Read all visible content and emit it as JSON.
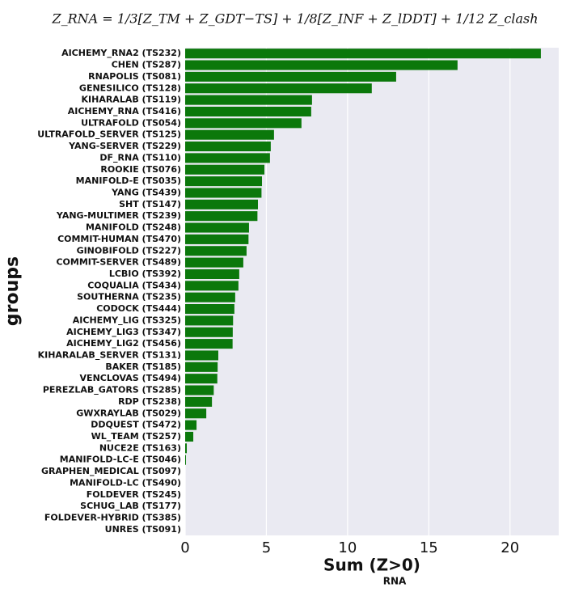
{
  "chart_data": {
    "type": "bar",
    "orientation": "horizontal",
    "title": "Z_RNA = 1/3[Z_TM + Z_GDT−TS] + 1/8[Z_INF + Z_lDDT] + 1/12 Z_clash",
    "xlabel": "Sum (Z>0)",
    "xlabel_sub": "RNA",
    "ylabel": "groups",
    "categories": [
      "AICHEMY_RNA2 (TS232)",
      "CHEN (TS287)",
      "RNAPOLIS (TS081)",
      "GENESILICO (TS128)",
      "KIHARALAB (TS119)",
      "AICHEMY_RNA (TS416)",
      "ULTRAFOLD (TS054)",
      "ULTRAFOLD_SERVER (TS125)",
      "YANG-SERVER (TS229)",
      "DF_RNA (TS110)",
      "ROOKIE (TS076)",
      "MANIFOLD-E (TS035)",
      "YANG (TS439)",
      "SHT (TS147)",
      "YANG-MULTIMER (TS239)",
      "MANIFOLD (TS248)",
      "COMMIT-HUMAN (TS470)",
      "GINOBIFOLD (TS227)",
      "COMMIT-SERVER (TS489)",
      "LCBIO (TS392)",
      "COQUALIA (TS434)",
      "SOUTHERNA (TS235)",
      "CODOCK (TS444)",
      "AICHEMY_LIG (TS325)",
      "AICHEMY_LIG3 (TS347)",
      "AICHEMY_LIG2 (TS456)",
      "KIHARALAB_SERVER (TS131)",
      "BAKER (TS185)",
      "VENCLOVAS (TS494)",
      "PEREZLAB_GATORS (TS285)",
      "RDP (TS238)",
      "GWXRAYLAB (TS029)",
      "DDQUEST (TS472)",
      "WL_TEAM (TS257)",
      "NUCE2E (TS163)",
      "MANIFOLD-LC-E (TS046)",
      "GRAPHEN_MEDICAL (TS097)",
      "MANIFOLD-LC (TS490)",
      "FOLDEVER (TS245)",
      "SCHUG_LAB (TS177)",
      "FOLDEVER-HYBRID (TS385)",
      "UNRES (TS091)"
    ],
    "values": [
      21.9,
      16.77,
      12.99,
      11.49,
      7.81,
      7.76,
      7.16,
      5.47,
      5.27,
      5.22,
      4.88,
      4.73,
      4.7,
      4.48,
      4.45,
      3.93,
      3.9,
      3.78,
      3.58,
      3.33,
      3.28,
      3.08,
      3.03,
      2.95,
      2.93,
      2.92,
      2.04,
      2.0,
      1.98,
      1.76,
      1.65,
      1.3,
      0.7,
      0.5,
      0.1,
      0.05,
      0,
      0,
      0,
      0,
      0,
      0
    ],
    "color": "#0b780b",
    "xlim": [
      0,
      23
    ],
    "xticks": [
      0,
      5,
      10,
      15,
      20
    ],
    "grid": true
  }
}
